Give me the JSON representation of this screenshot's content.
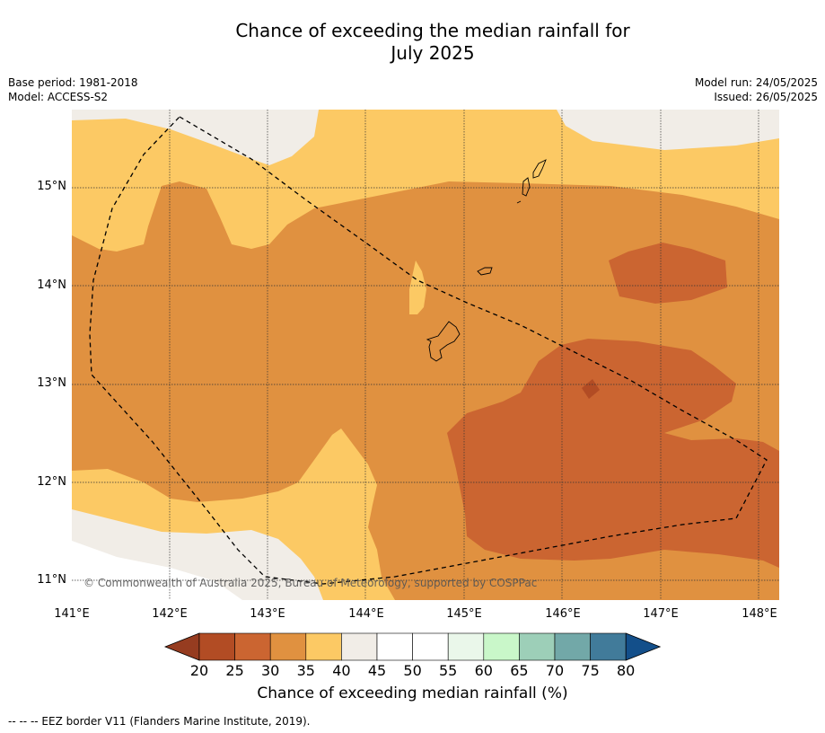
{
  "title": "Chance of exceeding the median rainfall for",
  "title_line2": "July 2025",
  "meta_left": {
    "base_period": "Base period: 1981-2018",
    "model": "Model: ACCESS-S2"
  },
  "meta_right": {
    "model_run": "Model run: 24/05/2025",
    "issued": "Issued: 26/05/2025"
  },
  "map": {
    "lon_range": [
      141.0,
      148.2
    ],
    "lat_range": [
      10.8,
      15.8
    ],
    "lat_ticks": [
      "15°N",
      "14°N",
      "13°N",
      "12°N",
      "11°N"
    ],
    "lon_ticks": [
      "141°E",
      "142°E",
      "143°E",
      "144°E",
      "145°E",
      "146°E",
      "147°E",
      "148°E"
    ],
    "grid": true,
    "copyright": "© Commonwealth of Australia 2025, Bureau of Meteorology, supported by COSPPac"
  },
  "colorbar": {
    "ticks": [
      "20",
      "25",
      "30",
      "35",
      "40",
      "45",
      "50",
      "55",
      "60",
      "65",
      "70",
      "75",
      "80"
    ],
    "colors": [
      "#b24c24",
      "#cb6531",
      "#e09140",
      "#fcc964",
      "#f1ede7",
      "#ffffff",
      "#ffffff",
      "#eaf7ea",
      "#c9f7c9",
      "#9dcfb8",
      "#72a8a8",
      "#417b9a"
    ],
    "under_color": "#963c20",
    "over_color": "#134f8a",
    "label": "Chance of exceeding median rainfall (%)"
  },
  "legend_note": "--  --  -- EEZ border V11 (Flanders Marine Institute, 2019)."
}
